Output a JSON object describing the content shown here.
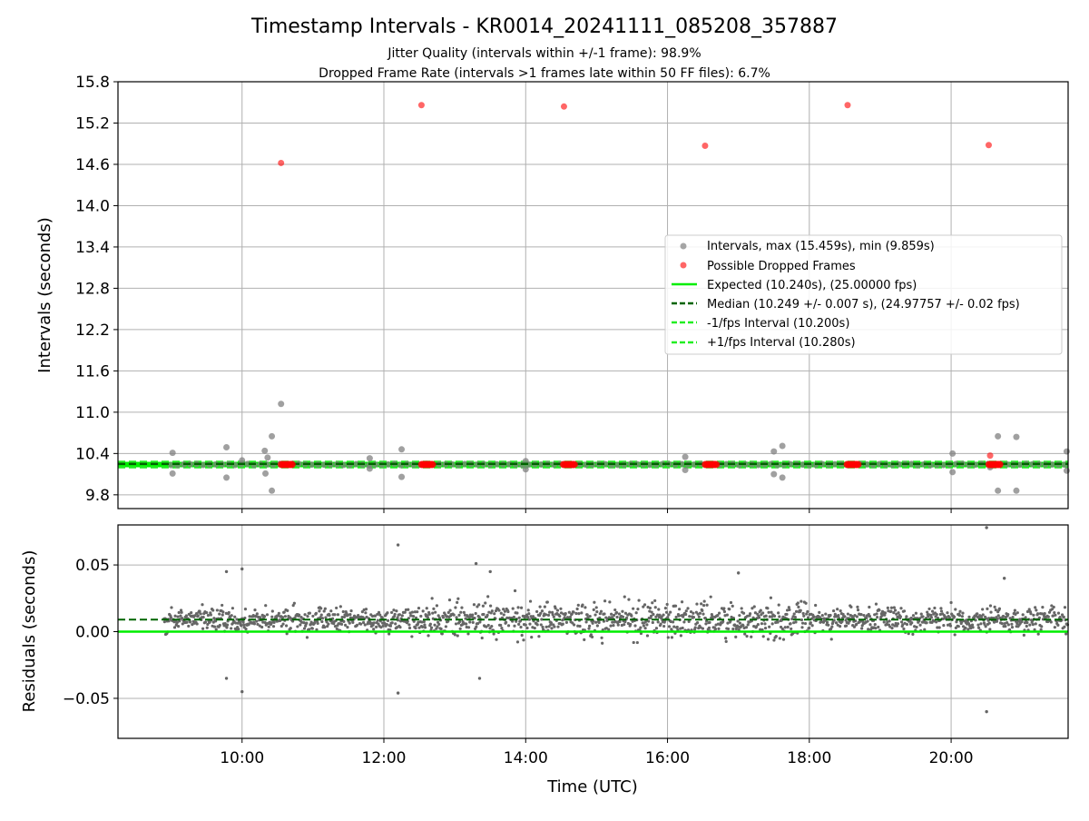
{
  "colors": {
    "interval_points": "#808080",
    "dropped_points": "#ff0000",
    "expected_line": "#00ee00",
    "median_line": "#006400",
    "fps_interval_lines": "#22ee22",
    "residual_points": "#666666",
    "grid": "#b0b0b0"
  },
  "chart_data": [
    {
      "type": "scatter",
      "title": "Timestamp Intervals - KR0014_20241111_085208_357887",
      "subtitle_lines": [
        "Jitter Quality (intervals within +/-1 frame): 98.9%",
        "Dropped Frame Rate (intervals >1 frames late within 50 FF files): 6.7%"
      ],
      "xlabel": "",
      "ylabel": "Intervals (seconds)",
      "x_unit": "hours UTC",
      "xlim": [
        8.25,
        21.65
      ],
      "ylim": [
        9.6,
        15.8
      ],
      "yticks": [
        "9.8",
        "10.4",
        "11.0",
        "11.6",
        "12.2",
        "12.8",
        "13.4",
        "14.0",
        "14.6",
        "15.2",
        "15.8"
      ],
      "grid": true,
      "legend_position": "right",
      "legend": [
        "Intervals, max (15.459s), min (9.859s)",
        "Possible Dropped Frames",
        "Expected (10.240s), (25.00000 fps)",
        "Median (10.249 +/- 0.007 s), (24.97757 +/- 0.02 fps)",
        "-1/fps Interval (10.200s)",
        "+1/fps Interval (10.280s)"
      ],
      "reference_lines": {
        "expected": 10.24,
        "median": 10.249,
        "minus_1_fps": 10.2,
        "plus_1_fps": 10.28
      },
      "series": [
        {
          "name": "Intervals, max (15.459s), min (9.859s)",
          "points": [
            [
              9.02,
              10.41
            ],
            [
              9.02,
              10.11
            ],
            [
              9.78,
              10.49
            ],
            [
              9.78,
              10.05
            ],
            [
              10.0,
              10.3
            ],
            [
              10.32,
              10.44
            ],
            [
              10.33,
              10.11
            ],
            [
              10.36,
              10.34
            ],
            [
              10.42,
              10.65
            ],
            [
              10.42,
              9.86
            ],
            [
              10.55,
              11.12
            ],
            [
              11.8,
              10.33
            ],
            [
              11.8,
              10.18
            ],
            [
              12.25,
              10.46
            ],
            [
              12.25,
              10.06
            ],
            [
              14.0,
              10.29
            ],
            [
              14.0,
              10.17
            ],
            [
              16.25,
              10.35
            ],
            [
              16.25,
              10.16
            ],
            [
              17.5,
              10.43
            ],
            [
              17.5,
              10.1
            ],
            [
              17.62,
              10.51
            ],
            [
              17.62,
              10.05
            ],
            [
              20.02,
              10.4
            ],
            [
              20.02,
              10.13
            ],
            [
              20.55,
              10.2
            ],
            [
              20.66,
              10.65
            ],
            [
              20.66,
              9.86
            ],
            [
              20.92,
              10.64
            ],
            [
              20.92,
              9.86
            ],
            [
              21.63,
              10.43
            ],
            [
              21.63,
              10.15
            ]
          ]
        },
        {
          "name": "Possible Dropped Frames",
          "points": [
            [
              10.55,
              14.62
            ],
            [
              12.53,
              15.46
            ],
            [
              14.54,
              15.44
            ],
            [
              16.53,
              14.87
            ],
            [
              18.54,
              15.46
            ],
            [
              20.53,
              14.88
            ],
            [
              20.55,
              10.37
            ]
          ],
          "clusters_at_10_24": [
            10.63,
            12.61,
            14.61,
            16.61,
            18.61,
            20.61
          ]
        }
      ]
    },
    {
      "type": "scatter",
      "xlabel": "Time (UTC)",
      "ylabel": "Residuals (seconds)",
      "x_unit": "hours UTC",
      "xlim": [
        8.25,
        21.65
      ],
      "ylim": [
        -0.08,
        0.08
      ],
      "yticks": [
        "−0.05",
        "0.00",
        "0.05"
      ],
      "xticks": [
        "10:00",
        "12:00",
        "14:00",
        "16:00",
        "18:00",
        "20:00"
      ],
      "xtick_values": [
        10,
        12,
        14,
        16,
        18,
        20
      ],
      "grid": true,
      "reference_lines": {
        "zero": 0.0,
        "median_offset": 0.009
      },
      "series": [
        {
          "name": "",
          "time_range": [
            8.9,
            21.65
          ],
          "typical_spread": [
            -0.02,
            0.04
          ],
          "outliers": [
            [
              9.78,
              0.045
            ],
            [
              9.78,
              -0.035
            ],
            [
              10.0,
              0.047
            ],
            [
              10.0,
              -0.045
            ],
            [
              12.2,
              0.065
            ],
            [
              12.2,
              -0.046
            ],
            [
              13.3,
              0.051
            ],
            [
              13.35,
              -0.035
            ],
            [
              13.5,
              0.045
            ],
            [
              17.0,
              0.044
            ],
            [
              20.5,
              0.078
            ],
            [
              20.5,
              -0.06
            ],
            [
              20.75,
              0.04
            ]
          ]
        }
      ]
    }
  ]
}
